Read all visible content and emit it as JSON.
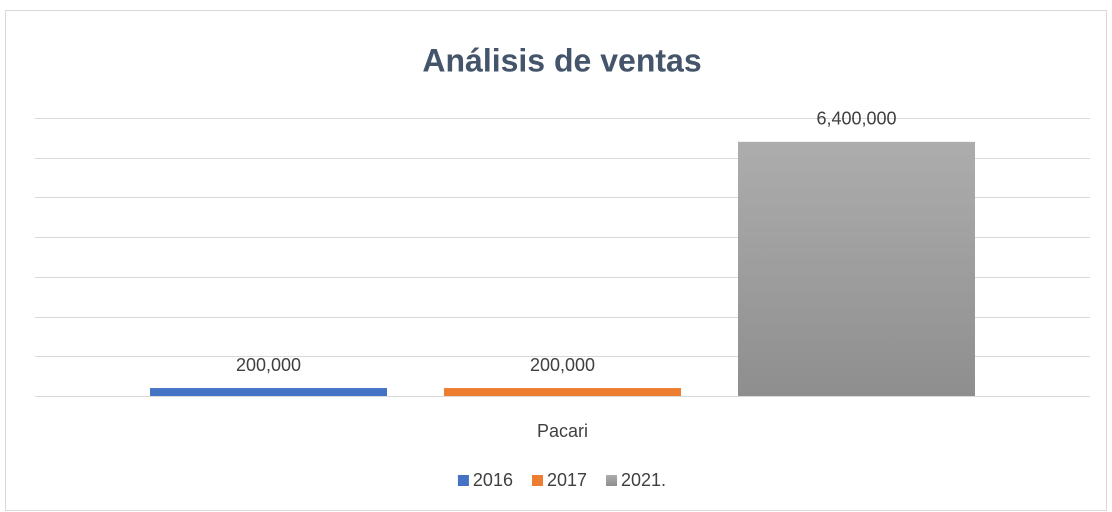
{
  "chart_data": {
    "type": "bar",
    "title": "Análisis de  ventas",
    "categories": [
      "Pacari"
    ],
    "series": [
      {
        "name": "2016",
        "color": "#4472c4",
        "values": [
          200000
        ],
        "value_labels": [
          "200,000"
        ]
      },
      {
        "name": "2017",
        "color": "#ed7d31",
        "values": [
          200000
        ],
        "value_labels": [
          "200,000"
        ]
      },
      {
        "name": "2021.",
        "color": "#a5a5a5",
        "values": [
          6400000
        ],
        "value_labels": [
          "6,400,000"
        ]
      }
    ],
    "ylim": [
      0,
      7000000
    ],
    "yticks": [
      0,
      1000000,
      2000000,
      3000000,
      4000000,
      5000000,
      6000000,
      7000000
    ],
    "grid": true,
    "legend": "bottom"
  }
}
